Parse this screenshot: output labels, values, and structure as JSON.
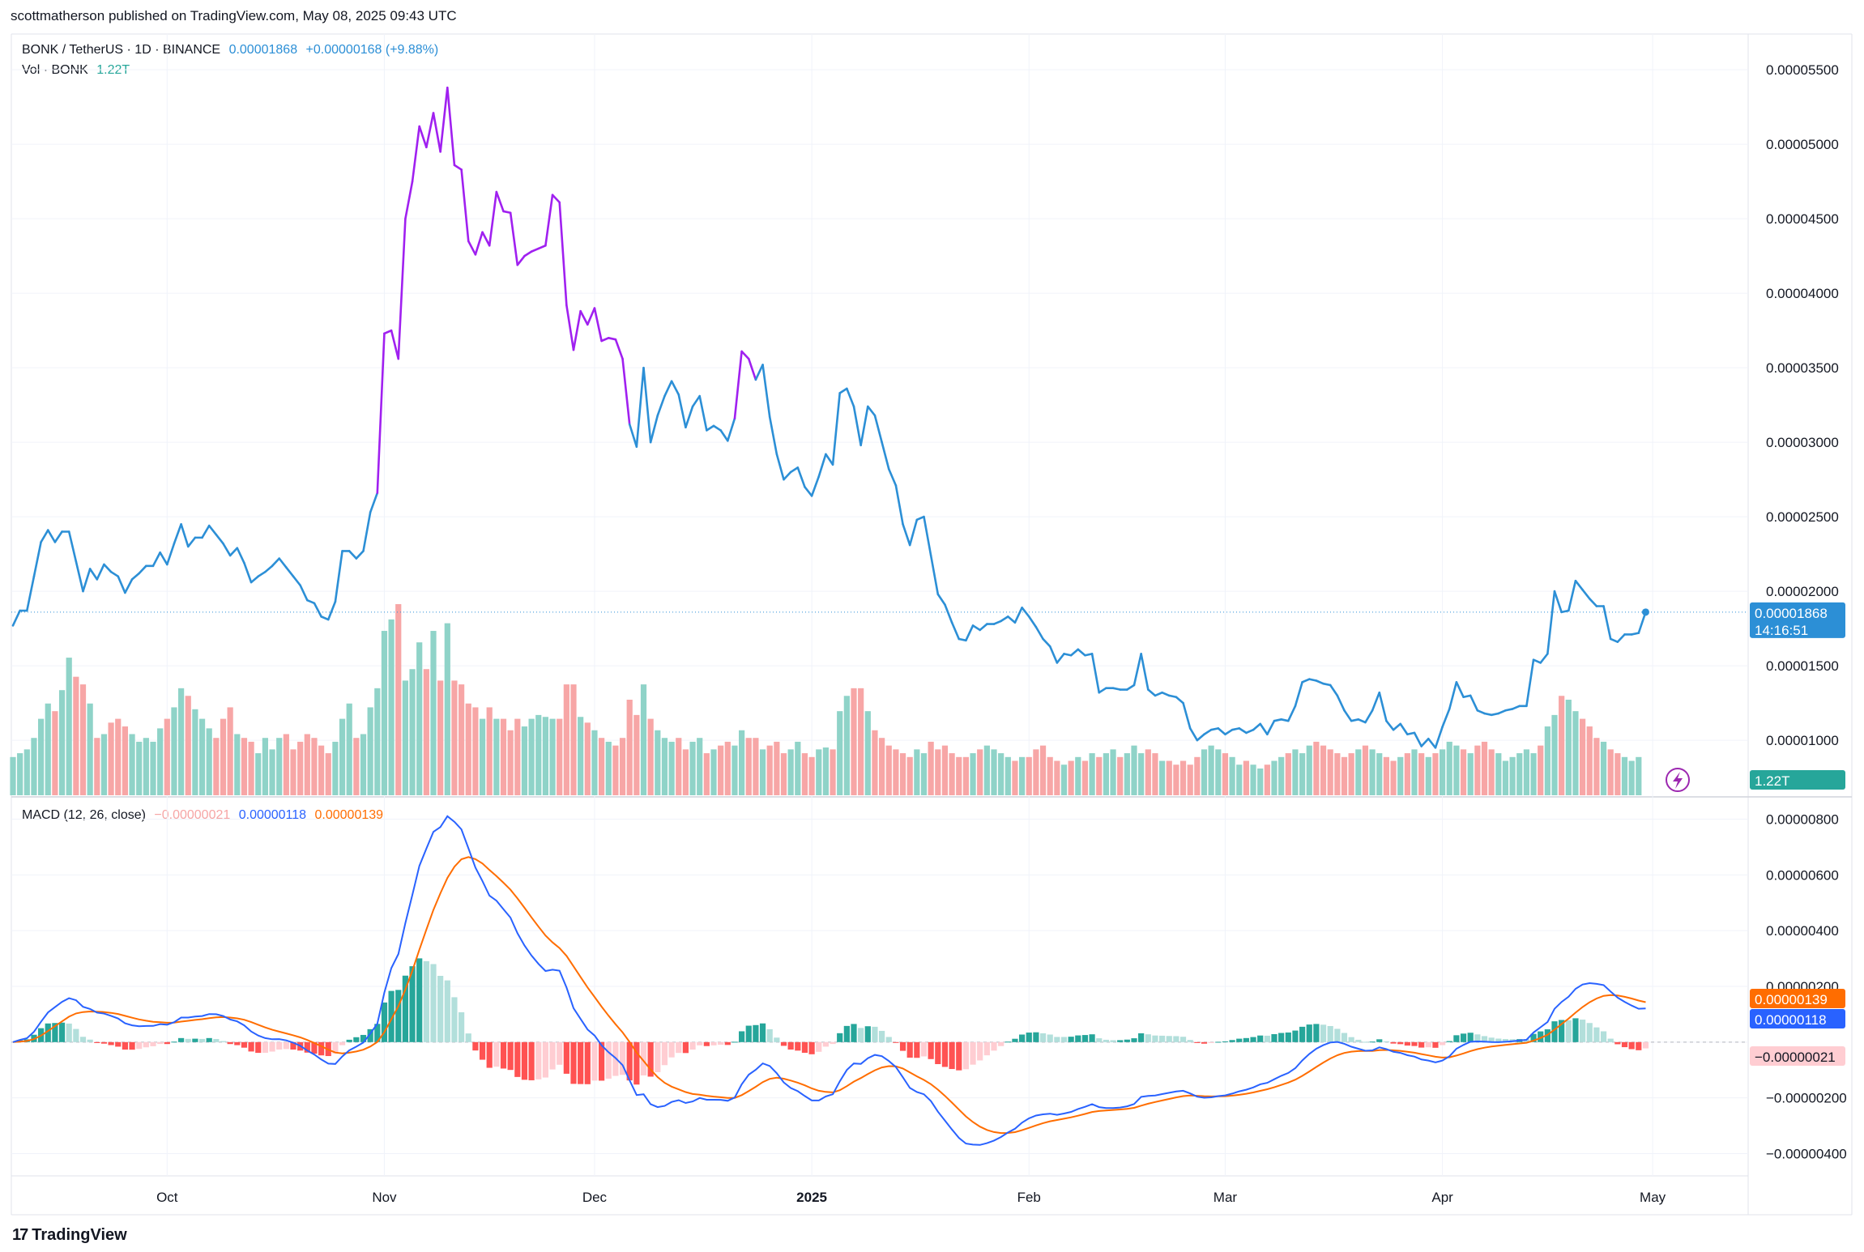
{
  "publisher": "scottmatherson published on TradingView.com, May 08, 2025 09:43 UTC",
  "header": {
    "symbol": "BONK / TetherUS · 1D · BINANCE",
    "price": "0.00001868",
    "change": "+0.00000168 (+9.88%)",
    "vol_label": "Vol · BONK",
    "vol_value": "1.22T"
  },
  "macd_header": {
    "label": "MACD (12, 26, close)",
    "hist": "−0.00000021",
    "macd": "0.00000118",
    "signal": "0.00000139"
  },
  "badges": {
    "price": "0.00001868",
    "countdown": "14:16:51",
    "vol": "1.22T",
    "signal": "0.00000139",
    "macd": "0.00000118",
    "hist": "−0.00000021"
  },
  "footer": {
    "logo": "17",
    "brand": "TradingView"
  },
  "colors": {
    "price_line": "#2c8fd6",
    "price_line_peak": "#a020f0",
    "vol_up": "#8fd3c8",
    "vol_down": "#f7a6a6",
    "macd_line": "#2962ff",
    "signal_line": "#ff6d00",
    "hist_up_strong": "#26a69a",
    "hist_up_weak": "#b2dfdb",
    "hist_down_strong": "#ff5252",
    "hist_down_weak": "#ffcdd2"
  },
  "chart_data": [
    {
      "type": "line",
      "title": "BONK / TetherUS · 1D · BINANCE",
      "x_ticks": [
        "Oct",
        "Nov",
        "Dec",
        "2025",
        "Feb",
        "Mar",
        "Apr",
        "May"
      ],
      "x_tick_days": [
        22,
        53,
        83,
        114,
        145,
        173,
        204,
        234
      ],
      "y_ticks": [
        "0.00001000",
        "0.00001500",
        "0.00002000",
        "0.00002500",
        "0.00003000",
        "0.00003500",
        "0.00004000",
        "0.00004500",
        "0.00005000",
        "0.00005500"
      ],
      "ylim": [
        6.2e-06,
        5.74e-05
      ],
      "first_date": "2024-09-09",
      "series": [
        {
          "name": "Close",
          "values_e8": [
            1770,
            1870,
            1870,
            2100,
            2330,
            2410,
            2330,
            2400,
            2400,
            2200,
            2000,
            2150,
            2080,
            2180,
            2130,
            2100,
            1990,
            2080,
            2120,
            2170,
            2170,
            2260,
            2180,
            2320,
            2450,
            2300,
            2360,
            2360,
            2440,
            2380,
            2320,
            2240,
            2290,
            2190,
            2060,
            2100,
            2130,
            2170,
            2220,
            2160,
            2100,
            2040,
            1940,
            1920,
            1830,
            1810,
            1930,
            2270,
            2270,
            2220,
            2270,
            2530,
            2660,
            3730,
            3750,
            3560,
            4500,
            4750,
            5120,
            4980,
            5210,
            4950,
            5380,
            4860,
            4830,
            4350,
            4260,
            4410,
            4320,
            4680,
            4550,
            4540,
            4190,
            4250,
            4280,
            4300,
            4320,
            4660,
            4610,
            3920,
            3620,
            3880,
            3790,
            3900,
            3680,
            3700,
            3690,
            3560,
            3120,
            2970,
            3500,
            3000,
            3180,
            3310,
            3410,
            3320,
            3100,
            3240,
            3310,
            3080,
            3110,
            3080,
            3010,
            3160,
            3610,
            3560,
            3420,
            3520,
            3170,
            2920,
            2750,
            2800,
            2830,
            2700,
            2640,
            2770,
            2920,
            2850,
            3330,
            3360,
            3240,
            2980,
            3240,
            3180,
            3000,
            2820,
            2710,
            2450,
            2310,
            2480,
            2500,
            2240,
            1980,
            1910,
            1790,
            1680,
            1670,
            1770,
            1740,
            1780,
            1780,
            1800,
            1830,
            1790,
            1890,
            1830,
            1760,
            1680,
            1630,
            1520,
            1580,
            1570,
            1610,
            1570,
            1580,
            1320,
            1350,
            1350,
            1340,
            1340,
            1370,
            1580,
            1340,
            1300,
            1320,
            1300,
            1290,
            1250,
            1080,
            1000,
            1040,
            1070,
            1080,
            1040,
            1070,
            1080,
            1050,
            1070,
            1110,
            1040,
            1130,
            1140,
            1130,
            1230,
            1390,
            1410,
            1400,
            1380,
            1370,
            1300,
            1200,
            1130,
            1140,
            1120,
            1200,
            1320,
            1130,
            1070,
            1110,
            1040,
            1050,
            960,
            1010,
            950,
            1090,
            1210,
            1390,
            1290,
            1300,
            1200,
            1180,
            1170,
            1180,
            1200,
            1210,
            1230,
            1230,
            1540,
            1520,
            1580,
            2000,
            1860,
            1870,
            2070,
            2010,
            1950,
            1900,
            1900,
            1680,
            1660,
            1710,
            1710,
            1720,
            1860
          ]
        },
        {
          "name": "Volume (relative)",
          "values": [
            0.2,
            0.22,
            0.24,
            0.3,
            0.4,
            0.48,
            0.44,
            0.55,
            0.72,
            0.62,
            0.58,
            0.48,
            0.3,
            0.32,
            0.38,
            0.4,
            0.36,
            0.32,
            0.28,
            0.3,
            0.28,
            0.35,
            0.4,
            0.46,
            0.56,
            0.52,
            0.45,
            0.4,
            0.35,
            0.3,
            0.4,
            0.46,
            0.32,
            0.3,
            0.28,
            0.22,
            0.3,
            0.24,
            0.3,
            0.32,
            0.24,
            0.28,
            0.32,
            0.3,
            0.26,
            0.22,
            0.28,
            0.4,
            0.48,
            0.3,
            0.32,
            0.46,
            0.56,
            0.86,
            0.92,
            1.0,
            0.6,
            0.66,
            0.8,
            0.66,
            0.86,
            0.6,
            0.9,
            0.6,
            0.58,
            0.48,
            0.46,
            0.4,
            0.46,
            0.4,
            0.4,
            0.34,
            0.4,
            0.36,
            0.4,
            0.42,
            0.41,
            0.4,
            0.4,
            0.58,
            0.58,
            0.41,
            0.38,
            0.34,
            0.3,
            0.28,
            0.26,
            0.3,
            0.5,
            0.42,
            0.58,
            0.4,
            0.34,
            0.3,
            0.28,
            0.3,
            0.24,
            0.28,
            0.3,
            0.22,
            0.24,
            0.26,
            0.28,
            0.26,
            0.34,
            0.3,
            0.3,
            0.24,
            0.26,
            0.28,
            0.22,
            0.24,
            0.28,
            0.22,
            0.2,
            0.24,
            0.25,
            0.24,
            0.44,
            0.52,
            0.56,
            0.56,
            0.44,
            0.34,
            0.3,
            0.26,
            0.24,
            0.22,
            0.2,
            0.24,
            0.22,
            0.28,
            0.24,
            0.26,
            0.22,
            0.2,
            0.2,
            0.22,
            0.24,
            0.26,
            0.24,
            0.22,
            0.2,
            0.18,
            0.2,
            0.2,
            0.24,
            0.26,
            0.2,
            0.18,
            0.16,
            0.18,
            0.2,
            0.18,
            0.22,
            0.2,
            0.22,
            0.24,
            0.2,
            0.22,
            0.26,
            0.22,
            0.24,
            0.22,
            0.18,
            0.18,
            0.16,
            0.18,
            0.16,
            0.2,
            0.24,
            0.26,
            0.24,
            0.22,
            0.2,
            0.16,
            0.18,
            0.16,
            0.14,
            0.16,
            0.18,
            0.2,
            0.22,
            0.24,
            0.22,
            0.26,
            0.28,
            0.26,
            0.24,
            0.22,
            0.2,
            0.22,
            0.24,
            0.26,
            0.24,
            0.22,
            0.2,
            0.18,
            0.2,
            0.22,
            0.24,
            0.22,
            0.2,
            0.22,
            0.24,
            0.28,
            0.26,
            0.24,
            0.22,
            0.26,
            0.28,
            0.24,
            0.22,
            0.18,
            0.2,
            0.22,
            0.24,
            0.22,
            0.26,
            0.36,
            0.42,
            0.52,
            0.5,
            0.44,
            0.4,
            0.36,
            0.3,
            0.28,
            0.24,
            0.22,
            0.2,
            0.18,
            0.2
          ],
          "values_note": "",
          "volume_first_index": 0,
          "volume_offset_days": 0
        }
      ],
      "last_index": 241
    },
    {
      "type": "line",
      "title": "MACD (12, 26, close)",
      "y_ticks": [
        "0.00000800",
        "0.00000600",
        "0.00000400",
        "0.00000200",
        "0.00000000",
        "−0.00000200",
        "−0.00000400"
      ],
      "ylim": [
        -4.8e-06,
        8.8e-06
      ],
      "series": [
        {
          "name": "MACD",
          "color": "#2962ff"
        },
        {
          "name": "Signal",
          "color": "#ff6d00"
        },
        {
          "name": "Histogram"
        }
      ],
      "fast": 12,
      "slow": 26,
      "signal": 9
    }
  ]
}
